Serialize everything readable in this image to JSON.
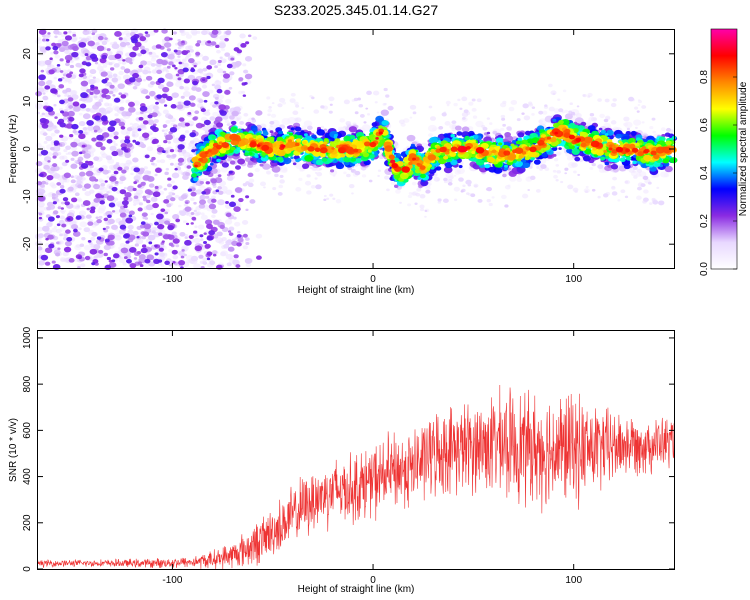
{
  "title": "S233.2025.345.01.14.G27",
  "chart_data": [
    {
      "type": "heatmap",
      "name": "spectrogram",
      "xlabel": "Height of straight line (km)",
      "ylabel": "Frequency (Hz)",
      "xlim": [
        -167,
        150
      ],
      "ylim": [
        -25,
        25
      ],
      "xticks": [
        -100,
        0,
        100
      ],
      "xtick_labels": [
        "-100",
        "0",
        "100"
      ],
      "yticks": [
        -20,
        -10,
        0,
        10,
        20
      ],
      "ytick_labels": [
        "-20",
        "-10",
        "0",
        "10",
        "20"
      ],
      "signal_ridge": {
        "x": [
          -90,
          -80,
          -70,
          -60,
          -50,
          -40,
          -30,
          -20,
          -10,
          0,
          5,
          10,
          15,
          20,
          25,
          30,
          40,
          50,
          60,
          70,
          80,
          90,
          95,
          100,
          110,
          120,
          130,
          140,
          150
        ],
        "y": [
          -4,
          0,
          2,
          1,
          0,
          1,
          0,
          0,
          0,
          1,
          4,
          -3,
          -5,
          -2,
          -4,
          -1,
          0,
          0,
          -1,
          -1,
          0,
          3,
          4,
          2,
          1,
          0,
          0,
          -1,
          0
        ]
      },
      "colorbar": {
        "label": "Normalized spectral amplitude",
        "range": [
          0,
          1
        ],
        "ticks": [
          0.0,
          0.2,
          0.4,
          0.6,
          0.8
        ],
        "tick_labels": [
          "0.0",
          "0.2",
          "0.4",
          "0.6",
          "0.8"
        ],
        "colors": [
          "#ffffff",
          "#e8d8ff",
          "#8a2be2",
          "#0000ff",
          "#00ffff",
          "#00ff00",
          "#ffff00",
          "#ff8800",
          "#ff0000",
          "#ff00aa"
        ]
      }
    },
    {
      "type": "line",
      "name": "snr",
      "xlabel": "Height of straight line (km)",
      "ylabel": "SNR (10 * v/v)",
      "xlim": [
        -167,
        150
      ],
      "ylim": [
        0,
        1030
      ],
      "xticks": [
        -100,
        0,
        100
      ],
      "xtick_labels": [
        "-100",
        "0",
        "100"
      ],
      "yticks": [
        0,
        200,
        400,
        600,
        800,
        1000
      ],
      "ytick_labels": [
        "0",
        "200",
        "400",
        "600",
        "800",
        "1000"
      ],
      "color": "#ee3333",
      "envelope": {
        "x": [
          -167,
          -140,
          -110,
          -90,
          -80,
          -70,
          -60,
          -50,
          -40,
          -30,
          -20,
          -10,
          0,
          10,
          20,
          30,
          40,
          50,
          60,
          70,
          80,
          90,
          100,
          110,
          120,
          130,
          140,
          150
        ],
        "y": [
          25,
          25,
          25,
          30,
          40,
          60,
          100,
          160,
          230,
          300,
          340,
          350,
          380,
          420,
          440,
          500,
          520,
          530,
          540,
          540,
          520,
          520,
          520,
          520,
          530,
          540,
          540,
          550
        ],
        "spread": [
          15,
          15,
          20,
          25,
          40,
          60,
          90,
          110,
          130,
          140,
          150,
          150,
          160,
          170,
          170,
          180,
          190,
          200,
          220,
          240,
          240,
          250,
          240,
          200,
          160,
          130,
          120,
          110
        ]
      }
    }
  ]
}
